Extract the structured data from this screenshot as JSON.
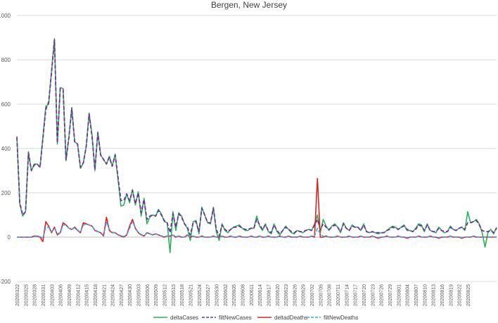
{
  "chart_data": {
    "type": "line",
    "title": "Bergen, New Jersey",
    "ylim": [
      -200,
      1000
    ],
    "yticks": [
      -200,
      0,
      200,
      400,
      600,
      800,
      1000
    ],
    "grid": true,
    "legend_position": "bottom",
    "x_tick_labels": [
      "20200322",
      "20200325",
      "20200328",
      "20200331",
      "20200403",
      "20200406",
      "20200409",
      "20200412",
      "20200415",
      "20200418",
      "20200421",
      "20200424",
      "20200427",
      "20200430",
      "20200503",
      "20200506",
      "20200509",
      "20200512",
      "20200515",
      "20200518",
      "20200521",
      "20200524",
      "20200527",
      "20200530",
      "20200602",
      "20200605",
      "20200608",
      "20200611",
      "20200614",
      "20200617",
      "20200620",
      "20200623",
      "20200626",
      "20200629",
      "20200702",
      "20200705",
      "20200708",
      "20200711",
      "20200714",
      "20200717",
      "20200720",
      "20200723",
      "20200726",
      "20200729",
      "20200801",
      "20200804",
      "20200807",
      "20200810",
      "20200813",
      "20200816",
      "20200819",
      "20200822",
      "20200825"
    ],
    "series": [
      {
        "name": "deltaCases",
        "color": "#2eb05a",
        "dash": "solid",
        "values": [
          455,
          150,
          95,
          115,
          385,
          300,
          330,
          330,
          315,
          450,
          590,
          600,
          750,
          895,
          420,
          675,
          670,
          345,
          450,
          585,
          430,
          420,
          310,
          335,
          410,
          560,
          460,
          300,
          475,
          370,
          350,
          330,
          365,
          320,
          375,
          260,
          140,
          145,
          195,
          155,
          215,
          145,
          205,
          95,
          175,
          60,
          90,
          100,
          95,
          125,
          105,
          70,
          65,
          -70,
          115,
          30,
          110,
          95,
          60,
          40,
          -15,
          70,
          75,
          15,
          135,
          100,
          65,
          60,
          135,
          25,
          -15,
          60,
          30,
          20,
          35,
          45,
          50,
          55,
          40,
          30,
          30,
          40,
          40,
          95,
          50,
          30,
          60,
          25,
          15,
          60,
          25,
          10,
          30,
          50,
          35,
          20,
          15,
          30,
          25,
          20,
          30,
          35,
          30,
          60,
          100,
          20,
          80,
          50,
          30,
          50,
          60,
          45,
          20,
          65,
          40,
          30,
          55,
          45,
          45,
          30,
          60,
          25,
          20,
          25,
          20,
          15,
          20,
          20,
          30,
          40,
          50,
          45,
          35,
          45,
          55,
          30,
          30,
          25,
          40,
          60,
          55,
          25,
          60,
          30,
          25,
          20,
          45,
          30,
          20,
          25,
          50,
          35,
          30,
          40,
          45,
          30,
          115,
          65,
          70,
          80,
          60,
          20,
          -45,
          20,
          35,
          15,
          45
        ]
      },
      {
        "name": "filtNewCases",
        "color": "#7030a0",
        "dash": "dashed",
        "values": [
          450,
          155,
          100,
          115,
          380,
          300,
          325,
          330,
          315,
          445,
          575,
          610,
          745,
          890,
          425,
          670,
          665,
          350,
          450,
          580,
          430,
          420,
          315,
          335,
          410,
          555,
          455,
          305,
          470,
          370,
          350,
          330,
          360,
          320,
          370,
          270,
          165,
          165,
          195,
          165,
          210,
          150,
          200,
          110,
          170,
          80,
          95,
          100,
          95,
          120,
          100,
          75,
          65,
          20,
          105,
          45,
          105,
          90,
          60,
          45,
          10,
          65,
          70,
          25,
          130,
          100,
          65,
          65,
          130,
          35,
          5,
          55,
          35,
          25,
          35,
          45,
          45,
          50,
          40,
          35,
          35,
          40,
          40,
          80,
          55,
          35,
          55,
          30,
          20,
          55,
          30,
          15,
          30,
          45,
          35,
          25,
          20,
          30,
          25,
          25,
          30,
          35,
          30,
          55,
          80,
          35,
          60,
          45,
          35,
          45,
          55,
          45,
          25,
          60,
          40,
          30,
          50,
          45,
          45,
          30,
          55,
          25,
          20,
          25,
          20,
          20,
          20,
          20,
          30,
          35,
          45,
          40,
          35,
          45,
          50,
          35,
          30,
          25,
          35,
          55,
          50,
          30,
          55,
          30,
          25,
          25,
          40,
          30,
          25,
          25,
          45,
          35,
          30,
          40,
          45,
          35,
          65,
          65,
          70,
          75,
          55,
          30,
          25,
          25,
          30,
          20,
          40
        ]
      },
      {
        "name": "deltadDeaths",
        "color": "#e02020",
        "dash": "solid",
        "values": [
          0,
          0,
          0,
          0,
          0,
          0,
          5,
          5,
          0,
          -20,
          70,
          50,
          20,
          45,
          10,
          20,
          65,
          55,
          40,
          35,
          45,
          30,
          20,
          65,
          60,
          55,
          50,
          30,
          25,
          20,
          5,
          90,
          30,
          20,
          20,
          10,
          5,
          0,
          10,
          50,
          80,
          40,
          20,
          10,
          5,
          20,
          15,
          10,
          15,
          10,
          5,
          0,
          5,
          5,
          10,
          0,
          5,
          0,
          0,
          10,
          0,
          5,
          0,
          0,
          5,
          0,
          0,
          0,
          5,
          0,
          0,
          5,
          0,
          0,
          5,
          0,
          0,
          5,
          0,
          0,
          0,
          5,
          0,
          0,
          5,
          0,
          0,
          5,
          0,
          0,
          0,
          5,
          0,
          0,
          5,
          0,
          0,
          0,
          5,
          0,
          0,
          0,
          5,
          0,
          265,
          0,
          0,
          5,
          0,
          0,
          0,
          5,
          0,
          0,
          0,
          5,
          0,
          0,
          0,
          5,
          0,
          0,
          0,
          5,
          0,
          -5,
          0,
          0,
          5,
          0,
          0,
          0,
          5,
          0,
          0,
          -5,
          0,
          0,
          0,
          5,
          0,
          0,
          0,
          5,
          0,
          0,
          -5,
          0,
          0,
          0,
          5,
          0,
          0,
          0,
          -5,
          0,
          0,
          0,
          5,
          0,
          0,
          0,
          0,
          0,
          0,
          0,
          0
        ]
      },
      {
        "name": "filtNewDeaths",
        "color": "#3ca0e8",
        "dash": "dashed",
        "values": [
          0,
          0,
          0,
          0,
          0,
          0,
          3,
          4,
          2,
          -5,
          45,
          45,
          25,
          40,
          15,
          20,
          55,
          55,
          40,
          35,
          42,
          32,
          22,
          55,
          58,
          55,
          50,
          32,
          26,
          20,
          10,
          70,
          35,
          22,
          20,
          12,
          6,
          3,
          10,
          40,
          70,
          42,
          22,
          12,
          6,
          18,
          15,
          10,
          14,
          10,
          6,
          2,
          5,
          5,
          9,
          2,
          5,
          1,
          1,
          8,
          1,
          4,
          1,
          1,
          4,
          1,
          1,
          1,
          4,
          1,
          1,
          4,
          1,
          1,
          4,
          1,
          1,
          4,
          1,
          1,
          1,
          4,
          1,
          1,
          4,
          1,
          1,
          4,
          1,
          1,
          1,
          4,
          1,
          1,
          4,
          1,
          1,
          1,
          4,
          1,
          1,
          1,
          4,
          5,
          40,
          15,
          3,
          4,
          1,
          1,
          1,
          4,
          1,
          1,
          1,
          4,
          1,
          1,
          1,
          4,
          1,
          1,
          1,
          4,
          1,
          -2,
          1,
          1,
          4,
          1,
          1,
          1,
          4,
          1,
          1,
          -2,
          1,
          1,
          1,
          4,
          1,
          1,
          1,
          4,
          1,
          1,
          -2,
          1,
          1,
          1,
          4,
          1,
          1,
          1,
          -2,
          1,
          1,
          1,
          4,
          1,
          1,
          1,
          1,
          1,
          1,
          1,
          1
        ]
      }
    ]
  }
}
